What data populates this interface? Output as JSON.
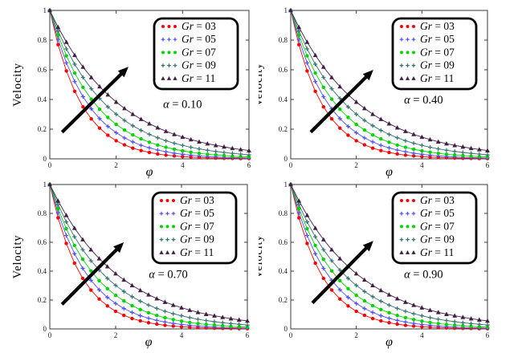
{
  "figure": {
    "background": "#ffffff",
    "axis_color": "#3a3a3a",
    "arrow_color": "#000000",
    "legend_border_color": "#000000"
  },
  "chart_data": [
    {
      "type": "line",
      "title": "",
      "xlabel": "φ",
      "ylabel": "Velocity",
      "annotation": "α = 0.10",
      "annotation_xy": [
        4.0,
        0.37
      ],
      "arrow_from": [
        0.37,
        0.18
      ],
      "arrow_to": [
        2.37,
        0.62
      ],
      "xlim": [
        0,
        6
      ],
      "ylim": [
        0,
        1
      ],
      "xticks": [
        0,
        2,
        4,
        6
      ],
      "yticks": [
        0,
        0.2,
        0.4,
        0.6,
        0.8,
        1
      ],
      "grid": false,
      "legend_position": "top-right",
      "x": [
        0,
        0.25,
        0.5,
        0.75,
        1,
        1.25,
        1.5,
        1.75,
        2,
        2.25,
        2.5,
        2.75,
        3,
        3.25,
        3.5,
        3.75,
        4,
        4.25,
        4.5,
        4.75,
        5,
        5.25,
        5.5,
        5.75,
        6
      ],
      "series": [
        {
          "name": "Gr = 03",
          "color": "#ff0000",
          "marker": "circle",
          "values": [
            1,
            0.769,
            0.592,
            0.455,
            0.35,
            0.269,
            0.207,
            0.159,
            0.122,
            0.094,
            0.072,
            0.056,
            0.043,
            0.033,
            0.025,
            0.02,
            0.015,
            0.012,
            0.009,
            0.007,
            0.005,
            0.004,
            0.003,
            0.002,
            0.002
          ]
        },
        {
          "name": "Gr = 05",
          "color": "#4d4dff",
          "marker": "plus",
          "values": [
            1,
            0.805,
            0.647,
            0.521,
            0.419,
            0.337,
            0.271,
            0.218,
            0.176,
            0.141,
            0.114,
            0.091,
            0.074,
            0.059,
            0.048,
            0.038,
            0.031,
            0.025,
            0.02,
            0.016,
            0.013,
            0.01,
            0.008,
            0.007,
            0.005
          ]
        },
        {
          "name": "Gr = 07",
          "color": "#00d500",
          "marker": "circle",
          "values": [
            1,
            0.833,
            0.694,
            0.578,
            0.482,
            0.402,
            0.334,
            0.279,
            0.232,
            0.194,
            0.161,
            0.134,
            0.112,
            0.093,
            0.078,
            0.065,
            0.054,
            0.045,
            0.037,
            0.031,
            0.026,
            0.022,
            0.018,
            0.015,
            0.013
          ]
        },
        {
          "name": "Gr = 09",
          "color": "#337070",
          "marker": "plus",
          "values": [
            1,
            0.861,
            0.741,
            0.638,
            0.549,
            0.472,
            0.407,
            0.35,
            0.301,
            0.259,
            0.223,
            0.192,
            0.165,
            0.142,
            0.122,
            0.105,
            0.091,
            0.078,
            0.067,
            0.058,
            0.05,
            0.043,
            0.037,
            0.032,
            0.027
          ]
        },
        {
          "name": "Gr = 11",
          "color": "#421d46",
          "marker": "triangle",
          "values": [
            1,
            0.887,
            0.787,
            0.698,
            0.619,
            0.549,
            0.487,
            0.432,
            0.383,
            0.34,
            0.301,
            0.267,
            0.237,
            0.21,
            0.186,
            0.165,
            0.147,
            0.13,
            0.115,
            0.102,
            0.091,
            0.081,
            0.071,
            0.063,
            0.056
          ]
        }
      ]
    },
    {
      "type": "line",
      "title": "",
      "xlabel": "φ",
      "ylabel": "Velocity",
      "annotation": "α = 0.40",
      "annotation_xy": [
        4.05,
        0.4
      ],
      "arrow_from": [
        0.61,
        0.18
      ],
      "arrow_to": [
        2.52,
        0.6
      ],
      "xlim": [
        0,
        6
      ],
      "ylim": [
        0,
        1
      ],
      "xticks": [
        0,
        2,
        4,
        6
      ],
      "yticks": [
        0,
        0.2,
        0.4,
        0.6,
        0.8,
        1
      ],
      "grid": false,
      "legend_position": "top-right",
      "x": [
        0,
        0.25,
        0.5,
        0.75,
        1,
        1.25,
        1.5,
        1.75,
        2,
        2.25,
        2.5,
        2.75,
        3,
        3.25,
        3.5,
        3.75,
        4,
        4.25,
        4.5,
        4.75,
        5,
        5.25,
        5.5,
        5.75,
        6
      ],
      "series": [
        {
          "name": "Gr = 03",
          "color": "#ff0000",
          "marker": "circle",
          "values": [
            1,
            0.769,
            0.592,
            0.455,
            0.35,
            0.269,
            0.207,
            0.159,
            0.122,
            0.094,
            0.072,
            0.056,
            0.043,
            0.033,
            0.025,
            0.02,
            0.015,
            0.012,
            0.009,
            0.007,
            0.005,
            0.004,
            0.003,
            0.002,
            0.002
          ]
        },
        {
          "name": "Gr = 05",
          "color": "#4d4dff",
          "marker": "plus",
          "values": [
            1,
            0.805,
            0.647,
            0.521,
            0.419,
            0.337,
            0.271,
            0.218,
            0.176,
            0.141,
            0.114,
            0.091,
            0.074,
            0.059,
            0.048,
            0.038,
            0.031,
            0.025,
            0.02,
            0.016,
            0.013,
            0.01,
            0.008,
            0.007,
            0.005
          ]
        },
        {
          "name": "Gr = 07",
          "color": "#00d500",
          "marker": "circle",
          "values": [
            1,
            0.833,
            0.694,
            0.578,
            0.482,
            0.402,
            0.334,
            0.279,
            0.232,
            0.194,
            0.161,
            0.134,
            0.112,
            0.093,
            0.078,
            0.065,
            0.054,
            0.045,
            0.037,
            0.031,
            0.026,
            0.022,
            0.018,
            0.015,
            0.013
          ]
        },
        {
          "name": "Gr = 09",
          "color": "#337070",
          "marker": "plus",
          "values": [
            1,
            0.861,
            0.741,
            0.638,
            0.549,
            0.472,
            0.407,
            0.35,
            0.301,
            0.259,
            0.223,
            0.192,
            0.165,
            0.142,
            0.122,
            0.105,
            0.091,
            0.078,
            0.067,
            0.058,
            0.05,
            0.043,
            0.037,
            0.032,
            0.027
          ]
        },
        {
          "name": "Gr = 11",
          "color": "#421d46",
          "marker": "triangle",
          "values": [
            1,
            0.887,
            0.787,
            0.698,
            0.619,
            0.549,
            0.487,
            0.432,
            0.383,
            0.34,
            0.301,
            0.267,
            0.237,
            0.21,
            0.186,
            0.165,
            0.147,
            0.13,
            0.115,
            0.102,
            0.091,
            0.081,
            0.071,
            0.063,
            0.056
          ]
        }
      ]
    },
    {
      "type": "line",
      "title": "",
      "xlabel": "φ",
      "ylabel": "Velocity",
      "annotation": "α = 0.70",
      "annotation_xy": [
        3.6,
        0.38
      ],
      "arrow_from": [
        0.37,
        0.17
      ],
      "arrow_to": [
        2.25,
        0.6
      ],
      "xlim": [
        0,
        6
      ],
      "ylim": [
        0,
        1
      ],
      "xticks": [
        0,
        2,
        4,
        6
      ],
      "yticks": [
        0,
        0.2,
        0.4,
        0.6,
        0.8,
        1
      ],
      "grid": false,
      "legend_position": "top-right",
      "x": [
        0,
        0.25,
        0.5,
        0.75,
        1,
        1.25,
        1.5,
        1.75,
        2,
        2.25,
        2.5,
        2.75,
        3,
        3.25,
        3.5,
        3.75,
        4,
        4.25,
        4.5,
        4.75,
        5,
        5.25,
        5.5,
        5.75,
        6
      ],
      "series": [
        {
          "name": "Gr = 03",
          "color": "#ff0000",
          "marker": "circle",
          "values": [
            1,
            0.769,
            0.592,
            0.455,
            0.35,
            0.269,
            0.207,
            0.159,
            0.122,
            0.094,
            0.072,
            0.056,
            0.043,
            0.033,
            0.025,
            0.02,
            0.015,
            0.012,
            0.009,
            0.007,
            0.005,
            0.004,
            0.003,
            0.002,
            0.002
          ]
        },
        {
          "name": "Gr = 05",
          "color": "#4d4dff",
          "marker": "plus",
          "values": [
            1,
            0.805,
            0.647,
            0.521,
            0.419,
            0.337,
            0.271,
            0.218,
            0.176,
            0.141,
            0.114,
            0.091,
            0.074,
            0.059,
            0.048,
            0.038,
            0.031,
            0.025,
            0.02,
            0.016,
            0.013,
            0.01,
            0.008,
            0.007,
            0.005
          ]
        },
        {
          "name": "Gr = 07",
          "color": "#00d500",
          "marker": "circle",
          "values": [
            1,
            0.833,
            0.694,
            0.578,
            0.482,
            0.402,
            0.334,
            0.279,
            0.232,
            0.194,
            0.161,
            0.134,
            0.112,
            0.093,
            0.078,
            0.065,
            0.054,
            0.045,
            0.037,
            0.031,
            0.026,
            0.022,
            0.018,
            0.015,
            0.013
          ]
        },
        {
          "name": "Gr = 09",
          "color": "#337070",
          "marker": "plus",
          "values": [
            1,
            0.861,
            0.741,
            0.638,
            0.549,
            0.472,
            0.407,
            0.35,
            0.301,
            0.259,
            0.223,
            0.192,
            0.165,
            0.142,
            0.122,
            0.105,
            0.091,
            0.078,
            0.067,
            0.058,
            0.05,
            0.043,
            0.037,
            0.032,
            0.027
          ]
        },
        {
          "name": "Gr = 11",
          "color": "#421d46",
          "marker": "triangle",
          "values": [
            1,
            0.887,
            0.787,
            0.698,
            0.619,
            0.549,
            0.487,
            0.432,
            0.383,
            0.34,
            0.301,
            0.267,
            0.237,
            0.21,
            0.186,
            0.165,
            0.147,
            0.13,
            0.115,
            0.102,
            0.091,
            0.081,
            0.071,
            0.063,
            0.056
          ]
        }
      ]
    },
    {
      "type": "line",
      "title": "",
      "xlabel": "φ",
      "ylabel": "Velocity",
      "annotation": "α = 0.90",
      "annotation_xy": [
        4.05,
        0.38
      ],
      "arrow_from": [
        0.66,
        0.18
      ],
      "arrow_to": [
        2.52,
        0.61
      ],
      "xlim": [
        0,
        6
      ],
      "ylim": [
        0,
        1
      ],
      "xticks": [
        0,
        2,
        4,
        6
      ],
      "yticks": [
        0,
        0.2,
        0.4,
        0.6,
        0.8,
        1
      ],
      "grid": false,
      "legend_position": "top-right",
      "x": [
        0,
        0.25,
        0.5,
        0.75,
        1,
        1.25,
        1.5,
        1.75,
        2,
        2.25,
        2.5,
        2.75,
        3,
        3.25,
        3.5,
        3.75,
        4,
        4.25,
        4.5,
        4.75,
        5,
        5.25,
        5.5,
        5.75,
        6
      ],
      "series": [
        {
          "name": "Gr = 03",
          "color": "#ff0000",
          "marker": "circle",
          "values": [
            1,
            0.769,
            0.592,
            0.455,
            0.35,
            0.269,
            0.207,
            0.159,
            0.122,
            0.094,
            0.072,
            0.056,
            0.043,
            0.033,
            0.025,
            0.02,
            0.015,
            0.012,
            0.009,
            0.007,
            0.005,
            0.004,
            0.003,
            0.002,
            0.002
          ]
        },
        {
          "name": "Gr = 05",
          "color": "#4d4dff",
          "marker": "plus",
          "values": [
            1,
            0.805,
            0.647,
            0.521,
            0.419,
            0.337,
            0.271,
            0.218,
            0.176,
            0.141,
            0.114,
            0.091,
            0.074,
            0.059,
            0.048,
            0.038,
            0.031,
            0.025,
            0.02,
            0.016,
            0.013,
            0.01,
            0.008,
            0.007,
            0.005
          ]
        },
        {
          "name": "Gr = 07",
          "color": "#00d500",
          "marker": "circle",
          "values": [
            1,
            0.833,
            0.694,
            0.578,
            0.482,
            0.402,
            0.334,
            0.279,
            0.232,
            0.194,
            0.161,
            0.134,
            0.112,
            0.093,
            0.078,
            0.065,
            0.054,
            0.045,
            0.037,
            0.031,
            0.026,
            0.022,
            0.018,
            0.015,
            0.013
          ]
        },
        {
          "name": "Gr = 09",
          "color": "#337070",
          "marker": "plus",
          "values": [
            1,
            0.861,
            0.741,
            0.638,
            0.549,
            0.472,
            0.407,
            0.35,
            0.301,
            0.259,
            0.223,
            0.192,
            0.165,
            0.142,
            0.122,
            0.105,
            0.091,
            0.078,
            0.067,
            0.058,
            0.05,
            0.043,
            0.037,
            0.032,
            0.027
          ]
        },
        {
          "name": "Gr = 11",
          "color": "#421d46",
          "marker": "triangle",
          "values": [
            1,
            0.887,
            0.787,
            0.698,
            0.619,
            0.549,
            0.487,
            0.432,
            0.383,
            0.34,
            0.301,
            0.267,
            0.237,
            0.21,
            0.186,
            0.165,
            0.147,
            0.13,
            0.115,
            0.102,
            0.091,
            0.081,
            0.071,
            0.063,
            0.056
          ]
        }
      ]
    }
  ]
}
